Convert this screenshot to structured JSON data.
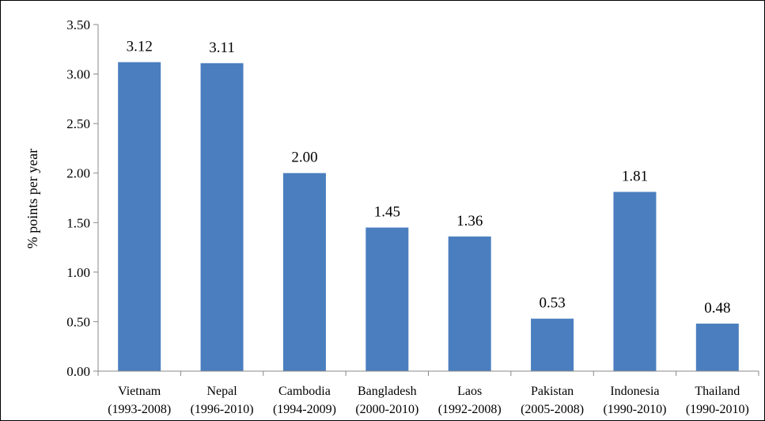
{
  "chart_data": {
    "type": "bar",
    "title": "",
    "xlabel": "",
    "ylabel": "% points per year",
    "ylim": [
      0,
      3.5
    ],
    "yticks": [
      "0.00",
      "0.50",
      "1.00",
      "1.50",
      "2.00",
      "2.50",
      "3.00",
      "3.50"
    ],
    "grid": false,
    "legend": "none",
    "bar_color": "#4a7ebf",
    "categories": [
      {
        "name": "Vietnam",
        "period": "(1993-2008)"
      },
      {
        "name": "Nepal",
        "period": "(1996-2010)"
      },
      {
        "name": "Cambodia",
        "period": "(1994-2009)"
      },
      {
        "name": "Bangladesh",
        "period": "(2000-2010)"
      },
      {
        "name": "Laos",
        "period": "(1992-2008)"
      },
      {
        "name": "Pakistan",
        "period": "(2005-2008)"
      },
      {
        "name": "Indonesia",
        "period": "(1990-2010)"
      },
      {
        "name": "Thailand",
        "period": "(1990-2010)"
      }
    ],
    "values": [
      3.12,
      3.11,
      2.0,
      1.45,
      1.36,
      0.53,
      1.81,
      0.48
    ],
    "value_labels": [
      "3.12",
      "3.11",
      "2.00",
      "1.45",
      "1.36",
      "0.53",
      "1.81",
      "0.48"
    ]
  }
}
